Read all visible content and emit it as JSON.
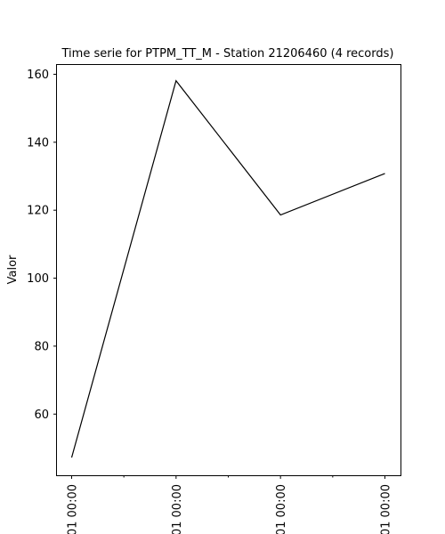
{
  "chart_data": {
    "type": "line",
    "title": "Time serie for PTPM_TT_M - Station 21206460 (4 records)",
    "xlabel": "",
    "ylabel": "Valor",
    "x_tick_labels": [
      "01 00:00",
      "01 00:00",
      "01 00:00",
      "01 00:00"
    ],
    "y_ticks": [
      60,
      80,
      100,
      120,
      140,
      160
    ],
    "ylim": [
      42,
      163
    ],
    "grid": false,
    "series": [
      {
        "values": [
          47.2,
          158.1,
          118.6,
          130.8
        ],
        "color": "#000000"
      }
    ]
  }
}
